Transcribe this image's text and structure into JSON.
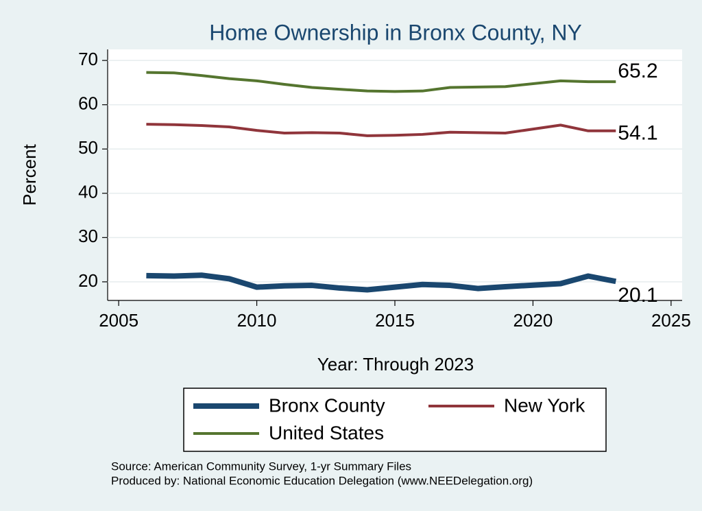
{
  "chart_data": {
    "type": "line",
    "title": "Home Ownership in Bronx County, NY",
    "x_label": "Year: Through 2023",
    "y_label": "Percent",
    "x": [
      2006,
      2007,
      2008,
      2009,
      2010,
      2011,
      2012,
      2013,
      2014,
      2015,
      2016,
      2017,
      2018,
      2019,
      2021,
      2022,
      2023
    ],
    "series": [
      {
        "name": "Bronx County",
        "color": "#1a476f",
        "values": [
          21.4,
          21.3,
          21.5,
          20.7,
          18.8,
          19.1,
          19.2,
          18.6,
          18.2,
          18.8,
          19.4,
          19.2,
          18.5,
          18.9,
          19.6,
          21.3,
          20.1
        ]
      },
      {
        "name": "New York",
        "color": "#90353b",
        "values": [
          55.6,
          55.5,
          55.3,
          55.0,
          54.2,
          53.6,
          53.7,
          53.6,
          53.0,
          53.1,
          53.3,
          53.8,
          53.7,
          53.6,
          55.4,
          54.1,
          54.1
        ]
      },
      {
        "name": "United States",
        "color": "#55752f",
        "values": [
          67.3,
          67.2,
          66.6,
          65.9,
          65.4,
          64.6,
          63.9,
          63.5,
          63.1,
          63.0,
          63.1,
          63.9,
          64.0,
          64.1,
          65.4,
          65.2,
          65.2
        ]
      }
    ],
    "xlim": [
      2004.6,
      2025.4
    ],
    "xticks": [
      2005,
      2010,
      2015,
      2020,
      2025
    ],
    "ylim": [
      15.8,
      72.5
    ],
    "yticks": [
      20,
      30,
      40,
      50,
      60,
      70
    ],
    "grid": true,
    "notes": [
      "Source: American Community Survey, 1-yr Summary Files",
      "Produced by: National Economic Education Delegation (www.NEEDelegation.org)"
    ]
  }
}
